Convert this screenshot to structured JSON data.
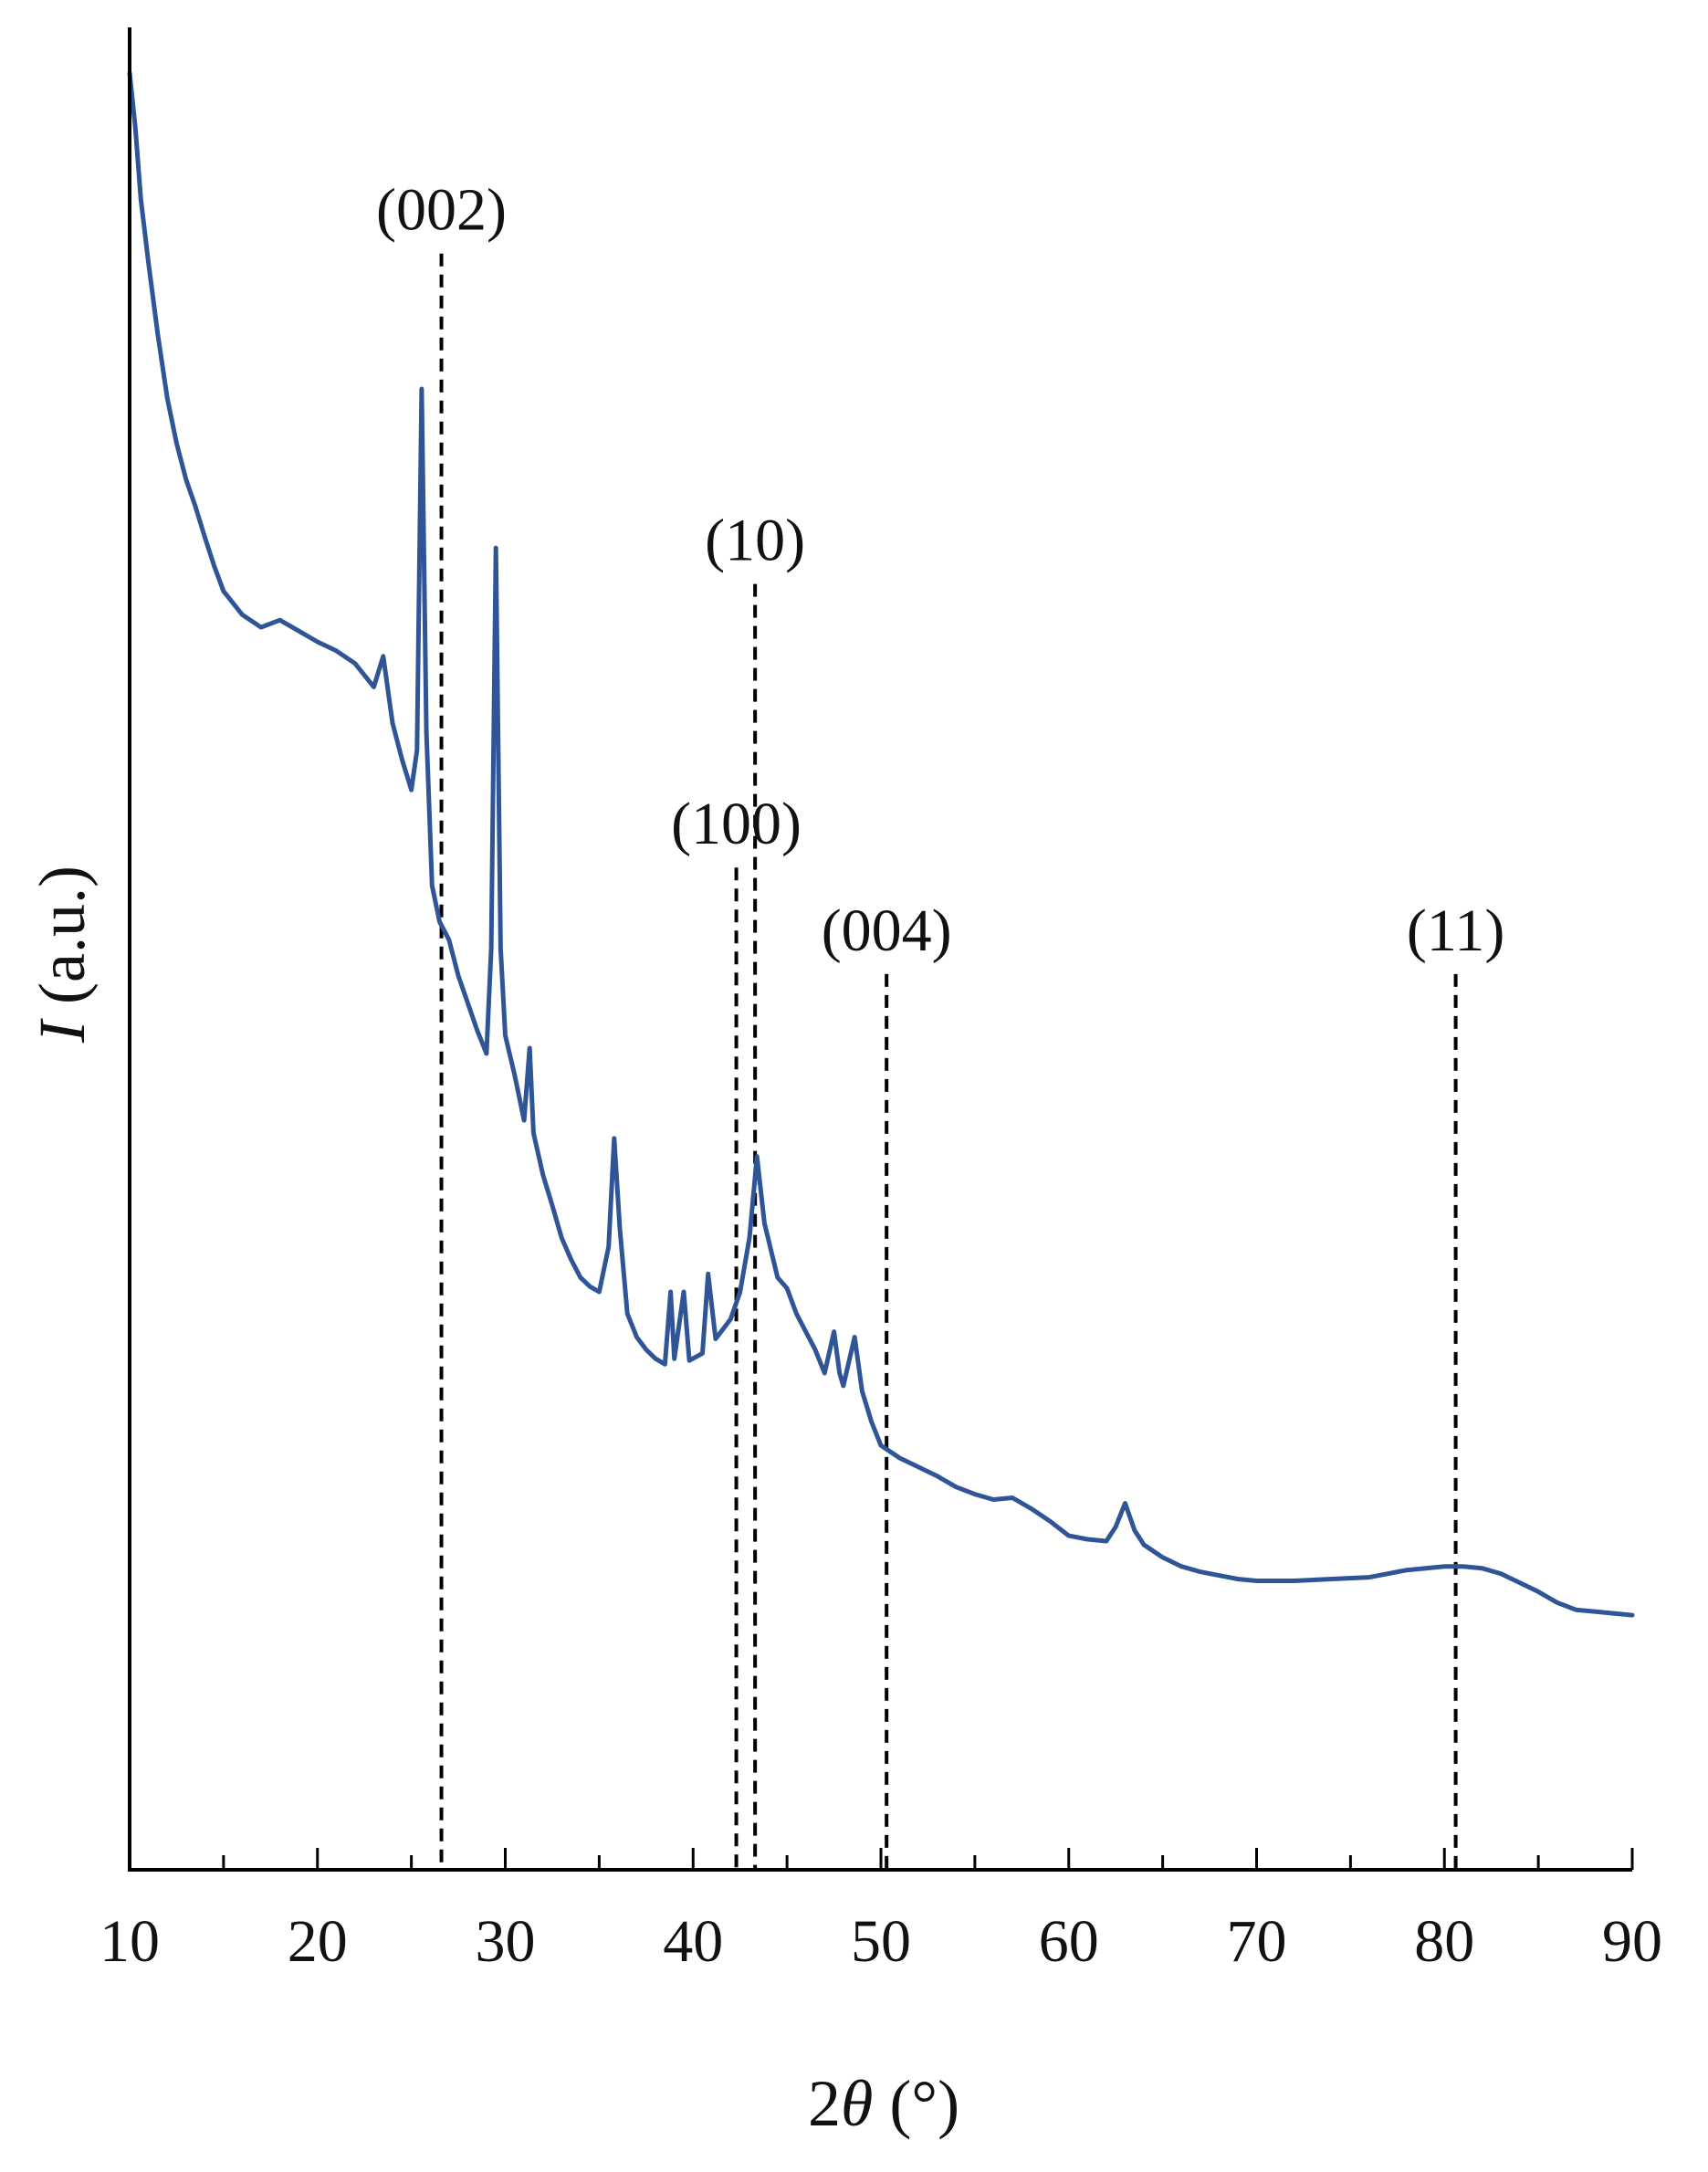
{
  "chart_data": {
    "type": "line",
    "title": "",
    "xlabel": {
      "prefix": "2",
      "symbol": "θ",
      "suffix": " (°)"
    },
    "ylabel": {
      "symbol": "I",
      "suffix": " (a.u.)"
    },
    "xlim": [
      10,
      90
    ],
    "ylim": [
      0,
      100
    ],
    "y_ticks_shown": false,
    "x_major_ticks": [
      10,
      20,
      30,
      40,
      50,
      60,
      70,
      80,
      90
    ],
    "x_tick_labels": [
      "10",
      "20",
      "30",
      "40",
      "50",
      "60",
      "70",
      "80",
      "90"
    ],
    "x_minor_step": 5,
    "grid": false,
    "legend": "none",
    "series": [
      {
        "color": "#2f5597",
        "points": [
          [
            10.0,
            99.5
          ],
          [
            10.3,
            96.5
          ],
          [
            10.6,
            92.5
          ],
          [
            11.0,
            89.0
          ],
          [
            11.5,
            85.0
          ],
          [
            12.0,
            81.5
          ],
          [
            12.5,
            79.0
          ],
          [
            13.0,
            77.0
          ],
          [
            13.5,
            75.5
          ],
          [
            14.0,
            73.8
          ],
          [
            14.5,
            72.2
          ],
          [
            15.0,
            70.8
          ],
          [
            16.0,
            69.5
          ],
          [
            17.0,
            68.8
          ],
          [
            18.0,
            69.2
          ],
          [
            19.0,
            68.6
          ],
          [
            20.0,
            68.0
          ],
          [
            21.0,
            67.5
          ],
          [
            22.0,
            66.8
          ],
          [
            23.0,
            65.5
          ],
          [
            23.5,
            67.2
          ],
          [
            24.0,
            63.5
          ],
          [
            24.5,
            61.5
          ],
          [
            25.0,
            59.8
          ],
          [
            25.3,
            62.0
          ],
          [
            25.55,
            82.0
          ],
          [
            25.8,
            63.0
          ],
          [
            26.1,
            54.5
          ],
          [
            26.5,
            52.5
          ],
          [
            27.0,
            51.5
          ],
          [
            27.5,
            49.5
          ],
          [
            28.0,
            48.0
          ],
          [
            28.5,
            46.5
          ],
          [
            29.0,
            45.2
          ],
          [
            29.25,
            51.0
          ],
          [
            29.5,
            73.2
          ],
          [
            29.75,
            51.0
          ],
          [
            30.0,
            46.2
          ],
          [
            30.5,
            44.0
          ],
          [
            31.0,
            41.5
          ],
          [
            31.3,
            45.5
          ],
          [
            31.5,
            40.8
          ],
          [
            32.0,
            38.5
          ],
          [
            32.5,
            36.8
          ],
          [
            33.0,
            35.0
          ],
          [
            33.5,
            33.8
          ],
          [
            34.0,
            32.8
          ],
          [
            34.5,
            32.3
          ],
          [
            35.0,
            32.0
          ],
          [
            35.5,
            34.5
          ],
          [
            35.8,
            40.5
          ],
          [
            36.1,
            35.5
          ],
          [
            36.5,
            30.8
          ],
          [
            37.0,
            29.5
          ],
          [
            37.5,
            28.8
          ],
          [
            38.0,
            28.3
          ],
          [
            38.5,
            28.0
          ],
          [
            38.8,
            32.0
          ],
          [
            39.0,
            28.3
          ],
          [
            39.5,
            32.0
          ],
          [
            39.8,
            28.2
          ],
          [
            40.5,
            28.6
          ],
          [
            40.8,
            33.0
          ],
          [
            41.2,
            29.4
          ],
          [
            42.0,
            30.5
          ],
          [
            42.5,
            32.0
          ],
          [
            43.0,
            35.0
          ],
          [
            43.4,
            39.5
          ],
          [
            43.8,
            35.8
          ],
          [
            44.5,
            32.8
          ],
          [
            45.0,
            32.2
          ],
          [
            45.5,
            30.8
          ],
          [
            46.0,
            29.8
          ],
          [
            46.5,
            28.8
          ],
          [
            47.0,
            27.5
          ],
          [
            47.5,
            29.8
          ],
          [
            47.8,
            27.5
          ],
          [
            48.0,
            26.8
          ],
          [
            48.6,
            29.5
          ],
          [
            49.0,
            26.5
          ],
          [
            49.5,
            24.8
          ],
          [
            50.0,
            23.5
          ],
          [
            51.0,
            22.8
          ],
          [
            52.0,
            22.3
          ],
          [
            53.0,
            21.8
          ],
          [
            54.0,
            21.2
          ],
          [
            55.0,
            20.8
          ],
          [
            56.0,
            20.5
          ],
          [
            57.0,
            20.6
          ],
          [
            58.0,
            20.0
          ],
          [
            59.0,
            19.3
          ],
          [
            60.0,
            18.5
          ],
          [
            61.0,
            18.3
          ],
          [
            62.0,
            18.2
          ],
          [
            62.5,
            19.0
          ],
          [
            63.0,
            20.3
          ],
          [
            63.5,
            18.8
          ],
          [
            64.0,
            18.0
          ],
          [
            65.0,
            17.3
          ],
          [
            66.0,
            16.8
          ],
          [
            67.0,
            16.5
          ],
          [
            68.0,
            16.3
          ],
          [
            69.0,
            16.1
          ],
          [
            70.0,
            16.0
          ],
          [
            72.0,
            16.0
          ],
          [
            74.0,
            16.1
          ],
          [
            76.0,
            16.2
          ],
          [
            78.0,
            16.6
          ],
          [
            80.0,
            16.8
          ],
          [
            81.0,
            16.8
          ],
          [
            82.0,
            16.7
          ],
          [
            83.0,
            16.4
          ],
          [
            84.0,
            15.9
          ],
          [
            85.0,
            15.4
          ],
          [
            86.0,
            14.8
          ],
          [
            87.0,
            14.4
          ],
          [
            88.0,
            14.3
          ],
          [
            89.0,
            14.2
          ],
          [
            90.0,
            14.1
          ]
        ]
      }
    ],
    "reference_lines": [
      {
        "label": "(002)",
        "x": 26.6,
        "y_top": 89.5
      },
      {
        "label": "(100)",
        "x": 42.3,
        "y_top": 55.5
      },
      {
        "label": "(10)",
        "x": 43.3,
        "y_top": 71.2
      },
      {
        "label": "(004)",
        "x": 50.3,
        "y_top": 49.6
      },
      {
        "label": "(11)",
        "x": 80.6,
        "y_top": 49.6
      }
    ]
  }
}
